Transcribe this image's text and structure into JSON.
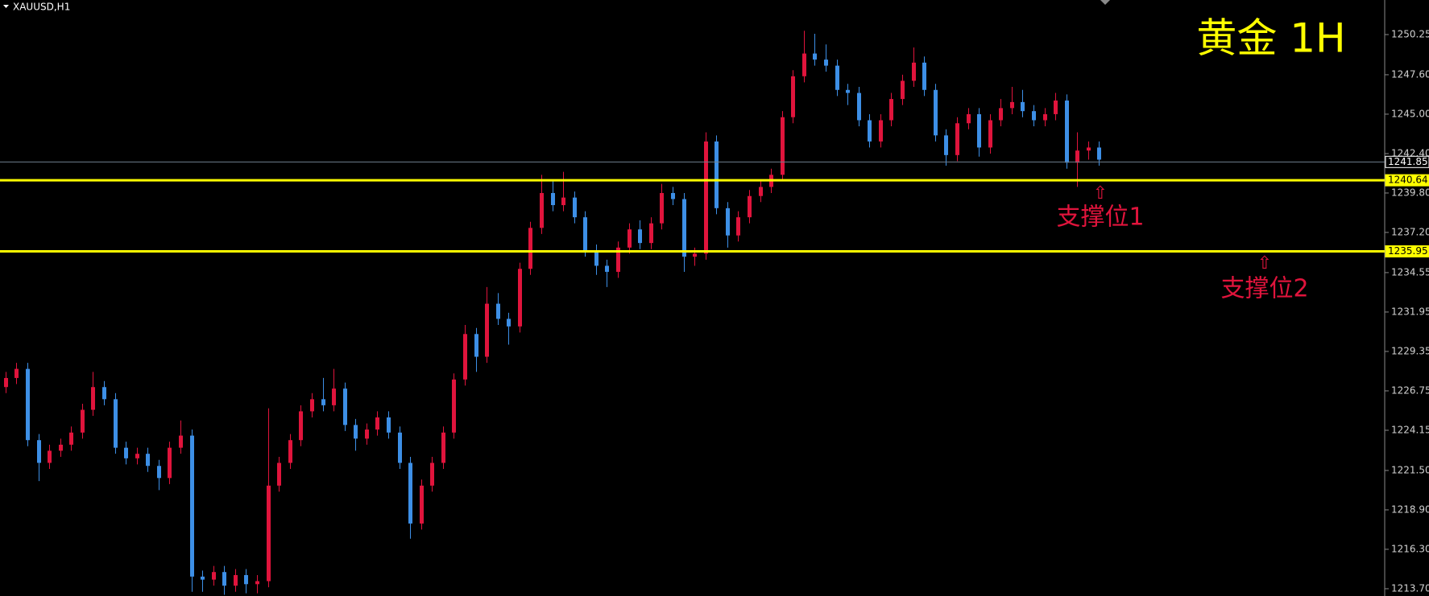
{
  "chart_data": {
    "type": "candlestick",
    "symbol": "XAUUSD,H1",
    "title": "黄金 1H",
    "up_color": "#e0143c",
    "down_color": "#3d8fe6",
    "open": [
      1227.0,
      1227.6,
      1228.2,
      1223.5,
      1222.0,
      1222.8,
      1223.2,
      1224.0,
      1225.5,
      1227.0,
      1226.2,
      1223.0,
      1222.3,
      1222.6,
      1221.8,
      1221.0,
      1223.0,
      1223.8,
      1214.5,
      1214.3,
      1214.8,
      1213.9,
      1214.6,
      1214.0,
      1214.2,
      1220.5,
      1222.0,
      1223.5,
      1225.4,
      1226.2,
      1225.8,
      1226.9,
      1224.5,
      1223.6,
      1224.2,
      1225.0,
      1224.0,
      1222.0,
      1218.0,
      1220.5,
      1222.0,
      1224.0,
      1227.5,
      1230.5,
      1229.0,
      1232.5,
      1231.5,
      1231.0,
      1234.8,
      1237.5,
      1239.8,
      1239.0,
      1239.5,
      1238.2,
      1236.0,
      1235.0,
      1234.6,
      1236.2,
      1237.4,
      1236.5,
      1237.8,
      1239.8,
      1239.4,
      1235.6,
      1235.8,
      1243.2,
      1238.8,
      1237.0,
      1238.2,
      1239.6,
      1240.2,
      1241.0,
      1244.8,
      1247.5,
      1249.0,
      1248.6,
      1248.2,
      1246.6,
      1246.4,
      1244.6,
      1243.2,
      1244.6,
      1246.0,
      1247.2,
      1248.4,
      1246.6,
      1243.6,
      1242.3,
      1244.4,
      1245.0,
      1242.8,
      1244.6,
      1245.4,
      1245.8,
      1245.2,
      1244.6,
      1245.0,
      1245.9,
      1241.8,
      1242.6,
      1242.8
    ],
    "high": [
      1228.0,
      1228.6,
      1228.6,
      1223.9,
      1223.2,
      1223.6,
      1224.4,
      1225.9,
      1228.0,
      1227.4,
      1226.6,
      1223.4,
      1223.0,
      1223.0,
      1222.2,
      1223.4,
      1224.8,
      1224.2,
      1214.9,
      1215.2,
      1215.2,
      1215.0,
      1215.0,
      1214.6,
      1225.6,
      1222.4,
      1223.9,
      1225.8,
      1226.6,
      1227.6,
      1228.2,
      1227.3,
      1224.9,
      1224.6,
      1225.4,
      1225.4,
      1224.4,
      1222.4,
      1220.9,
      1222.4,
      1224.4,
      1227.9,
      1231.1,
      1230.9,
      1233.6,
      1233.2,
      1231.9,
      1235.2,
      1237.9,
      1241.0,
      1240.6,
      1241.2,
      1239.9,
      1238.6,
      1236.4,
      1235.4,
      1236.6,
      1237.8,
      1238.0,
      1238.2,
      1240.4,
      1240.2,
      1239.8,
      1236.2,
      1243.8,
      1243.6,
      1239.2,
      1238.6,
      1240.0,
      1240.6,
      1241.4,
      1245.2,
      1247.9,
      1250.5,
      1250.3,
      1249.6,
      1248.6,
      1247.0,
      1246.8,
      1245.0,
      1245.0,
      1246.4,
      1247.6,
      1249.4,
      1248.8,
      1247.0,
      1244.0,
      1244.8,
      1245.4,
      1245.4,
      1245.0,
      1246.0,
      1246.8,
      1246.6,
      1245.6,
      1245.4,
      1246.4,
      1246.3,
      1243.8,
      1243.2,
      1243.2
    ],
    "low": [
      1226.6,
      1227.2,
      1223.1,
      1220.8,
      1221.6,
      1222.4,
      1222.8,
      1223.6,
      1225.1,
      1225.8,
      1222.6,
      1221.9,
      1221.9,
      1221.4,
      1220.2,
      1220.6,
      1222.6,
      1213.5,
      1213.5,
      1213.9,
      1213.3,
      1213.5,
      1213.4,
      1213.4,
      1213.8,
      1220.1,
      1221.6,
      1223.1,
      1225.0,
      1225.4,
      1225.4,
      1224.1,
      1222.8,
      1223.2,
      1223.8,
      1223.6,
      1221.6,
      1217.0,
      1217.6,
      1220.1,
      1221.6,
      1223.6,
      1227.1,
      1228.0,
      1228.6,
      1231.1,
      1229.8,
      1230.6,
      1234.4,
      1237.1,
      1238.6,
      1238.6,
      1237.8,
      1235.6,
      1234.4,
      1233.6,
      1234.2,
      1235.8,
      1236.1,
      1236.1,
      1237.4,
      1239.0,
      1234.6,
      1235.0,
      1235.4,
      1238.4,
      1236.2,
      1236.6,
      1237.8,
      1239.2,
      1239.8,
      1240.6,
      1244.4,
      1247.1,
      1248.2,
      1247.8,
      1246.2,
      1245.6,
      1244.2,
      1242.8,
      1242.8,
      1244.2,
      1245.6,
      1246.8,
      1246.2,
      1243.2,
      1241.6,
      1241.9,
      1244.0,
      1242.2,
      1242.4,
      1244.2,
      1245.0,
      1244.8,
      1244.2,
      1244.2,
      1244.6,
      1241.4,
      1240.2,
      1242.0,
      1241.6
    ],
    "close": [
      1227.6,
      1228.2,
      1223.5,
      1222.0,
      1222.8,
      1223.2,
      1224.0,
      1225.5,
      1227.0,
      1226.2,
      1223.0,
      1222.3,
      1222.6,
      1221.8,
      1221.0,
      1223.0,
      1223.8,
      1214.5,
      1214.3,
      1214.8,
      1213.9,
      1214.6,
      1214.0,
      1214.2,
      1220.5,
      1222.0,
      1223.5,
      1225.4,
      1226.2,
      1225.8,
      1226.9,
      1224.5,
      1223.6,
      1224.2,
      1225.0,
      1224.0,
      1222.0,
      1218.0,
      1220.5,
      1222.0,
      1224.0,
      1227.5,
      1230.5,
      1229.0,
      1232.5,
      1231.5,
      1231.0,
      1234.8,
      1237.5,
      1239.8,
      1239.0,
      1239.5,
      1238.2,
      1236.0,
      1235.0,
      1234.6,
      1236.2,
      1237.4,
      1236.5,
      1237.8,
      1239.8,
      1239.4,
      1235.6,
      1235.8,
      1243.2,
      1238.8,
      1237.0,
      1238.2,
      1239.6,
      1240.2,
      1241.0,
      1244.8,
      1247.5,
      1249.0,
      1248.6,
      1248.2,
      1246.6,
      1246.4,
      1244.6,
      1243.2,
      1244.6,
      1246.0,
      1247.2,
      1248.4,
      1246.6,
      1243.6,
      1242.3,
      1244.4,
      1245.0,
      1242.8,
      1244.6,
      1245.4,
      1245.8,
      1245.2,
      1244.6,
      1245.0,
      1245.9,
      1241.8,
      1242.6,
      1242.8,
      1242.0
    ],
    "ylim": [
      1213.22,
      1252.53
    ],
    "yticks": [
      {
        "value": 1250.25,
        "label": "1250.25"
      },
      {
        "value": 1247.6,
        "label": "1247.60"
      },
      {
        "value": 1245.0,
        "label": "1245.00"
      },
      {
        "value": 1242.4,
        "label": "1242.40"
      },
      {
        "value": 1239.8,
        "label": "1239.80"
      },
      {
        "value": 1237.2,
        "label": "1237.20"
      },
      {
        "value": 1234.55,
        "label": "1234.55"
      },
      {
        "value": 1231.95,
        "label": "1231.95"
      },
      {
        "value": 1229.35,
        "label": "1229.35"
      },
      {
        "value": 1226.75,
        "label": "1226.75"
      },
      {
        "value": 1224.15,
        "label": "1224.15"
      },
      {
        "value": 1221.5,
        "label": "1221.50"
      },
      {
        "value": 1218.9,
        "label": "1218.90"
      },
      {
        "value": 1216.3,
        "label": "1216.30"
      },
      {
        "value": 1213.7,
        "label": "1213.70"
      }
    ],
    "levels": [
      {
        "value": 1241.85,
        "label": "1241.85",
        "color": "#6f7f8f"
      },
      {
        "value": 1240.64,
        "label": "1240.64",
        "color": "#ffff00"
      },
      {
        "value": 1235.95,
        "label": "1235.95",
        "color": "#ffff00"
      }
    ],
    "annotations": [
      "支撑位1",
      "支撑位2"
    ]
  }
}
